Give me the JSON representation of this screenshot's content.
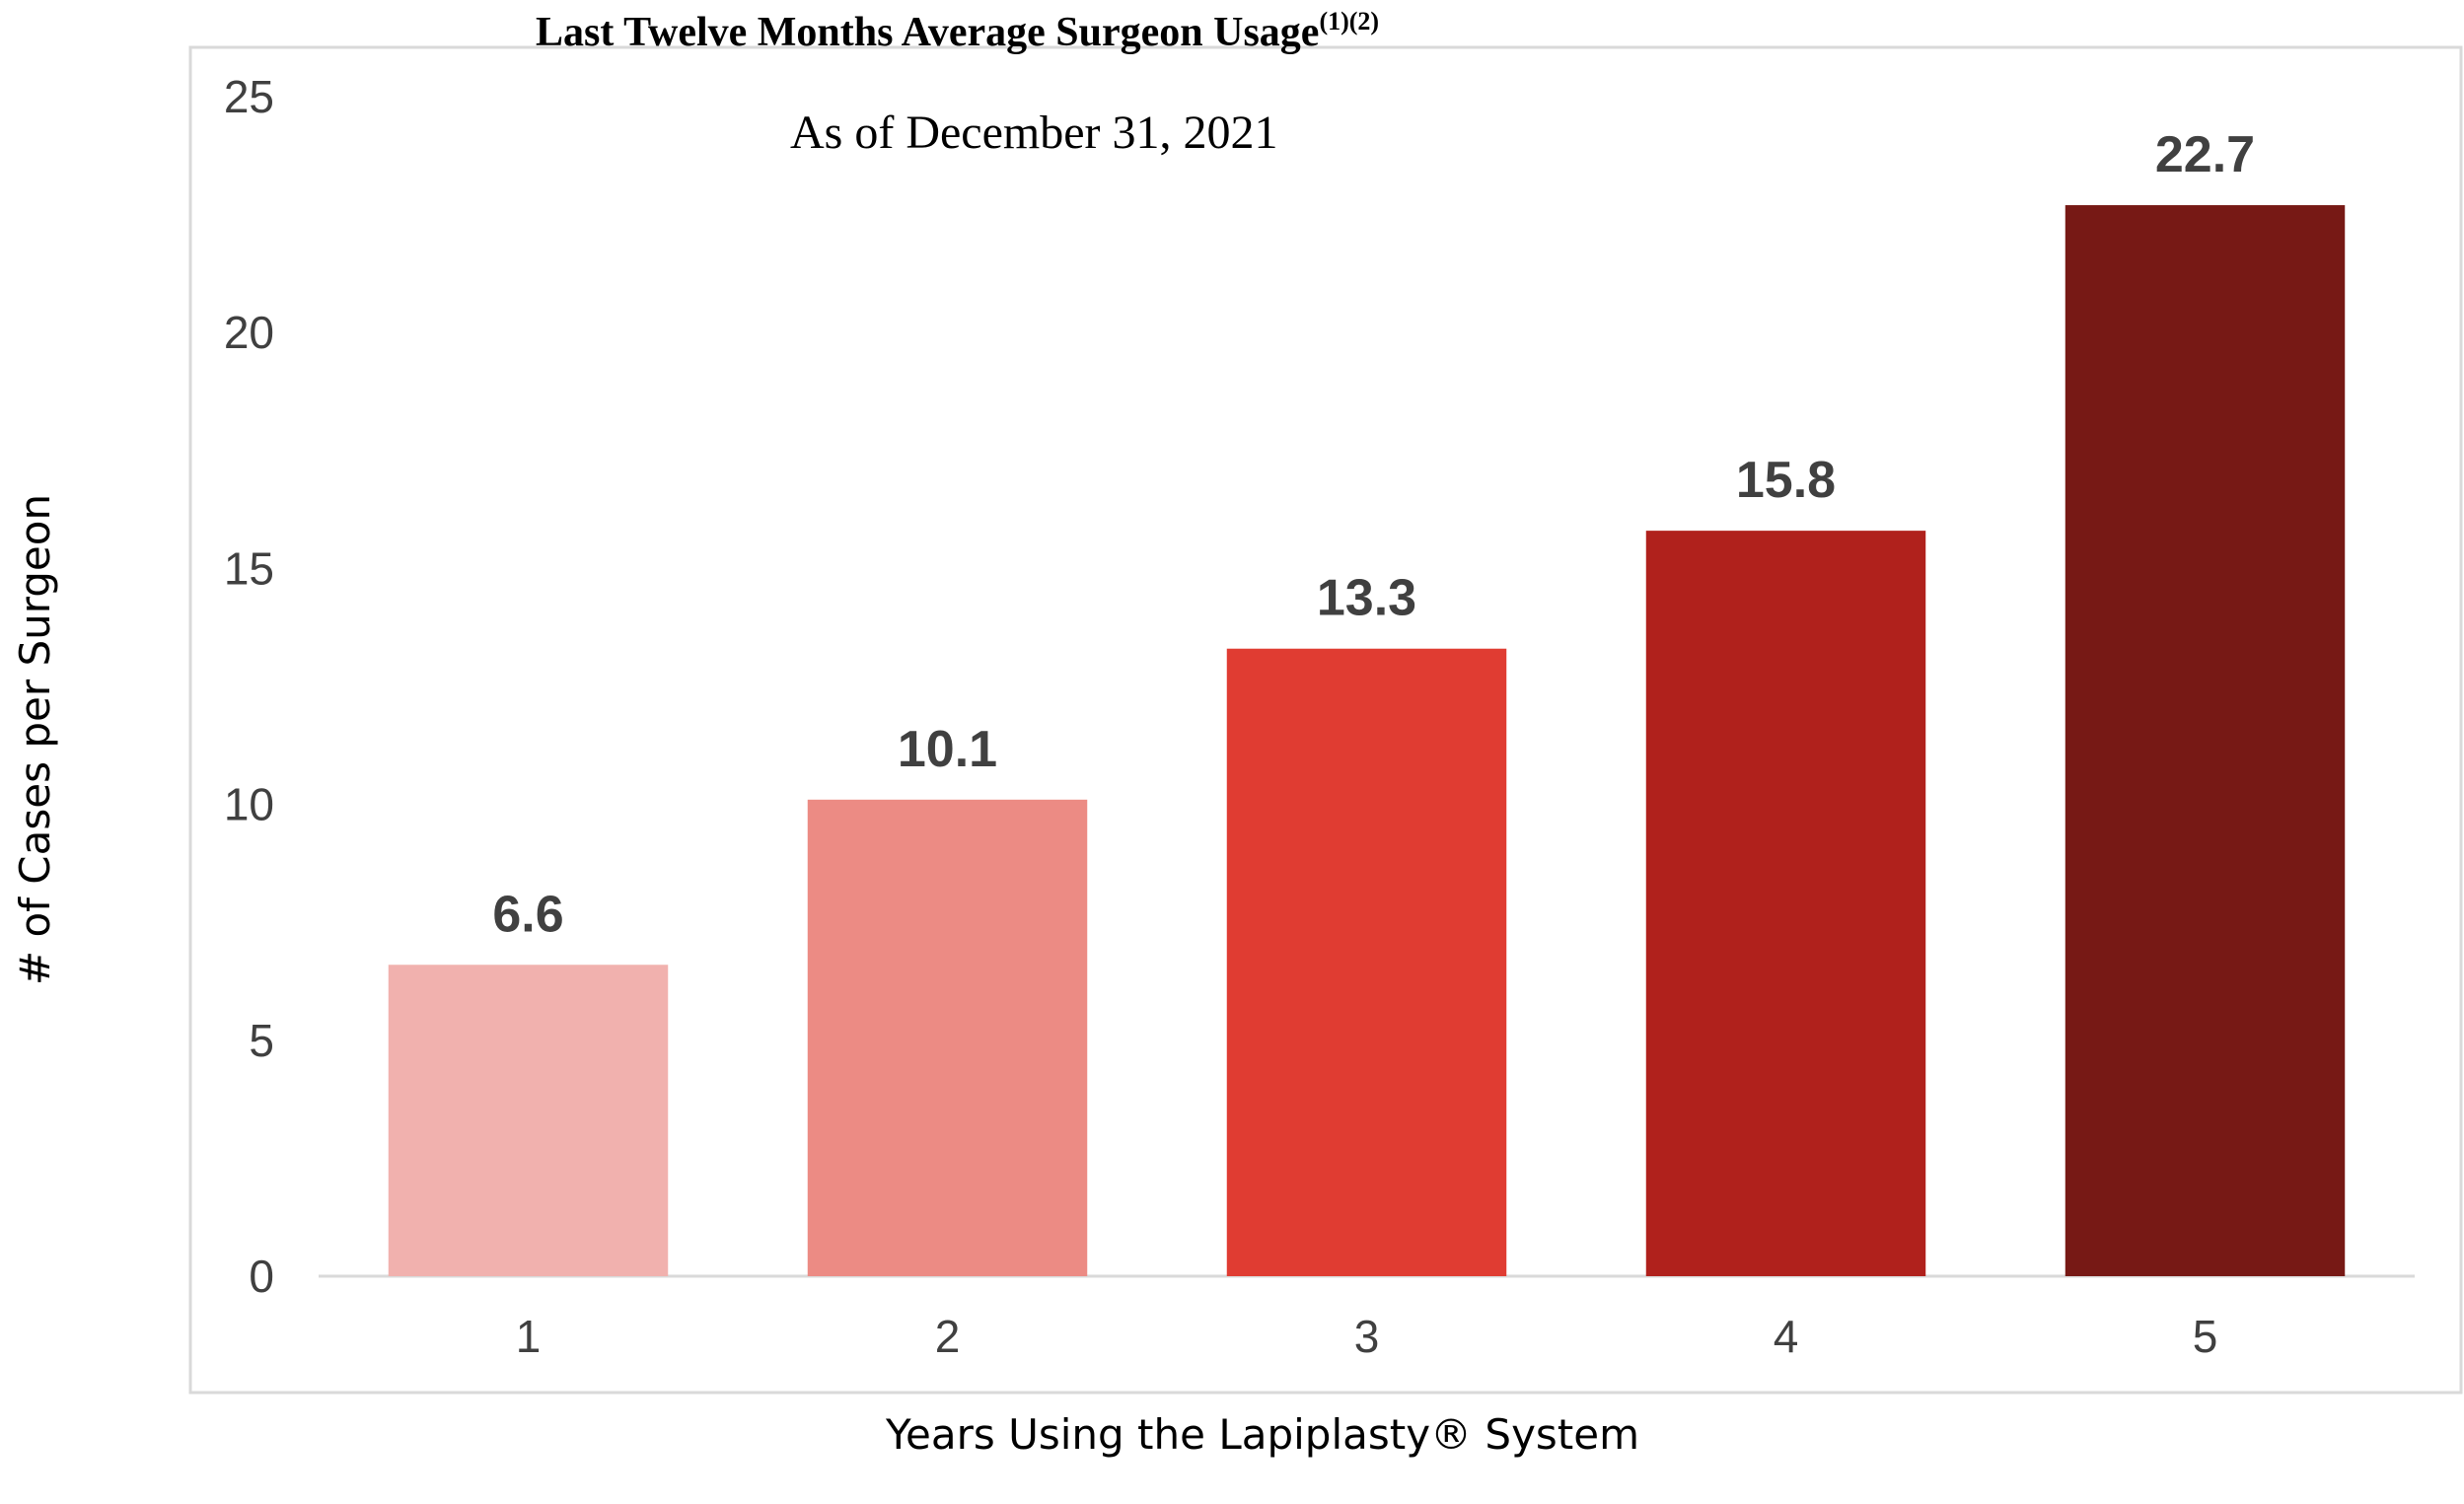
{
  "chart_data": {
    "type": "bar",
    "title": "Last Twelve Months Average Surgeon Usage",
    "title_superscript": "(1)(2)",
    "subtitle": "As of December 31, 2021",
    "xlabel": "Years Using the Lapiplasty® System",
    "ylabel": "# of Cases per Surgeon",
    "categories": [
      "1",
      "2",
      "3",
      "4",
      "5"
    ],
    "values": [
      6.6,
      10.1,
      13.3,
      15.8,
      22.7
    ],
    "value_labels": [
      "6.6",
      "10.1",
      "13.3",
      "15.8",
      "22.7"
    ],
    "bar_colors": [
      "#F1B1AE",
      "#EC8B84",
      "#E03C32",
      "#B0211C",
      "#771915"
    ],
    "ylim": [
      0,
      25
    ],
    "yticks": [
      "0",
      "5",
      "10",
      "15",
      "20",
      "25"
    ],
    "grid": false,
    "legend": "none"
  }
}
